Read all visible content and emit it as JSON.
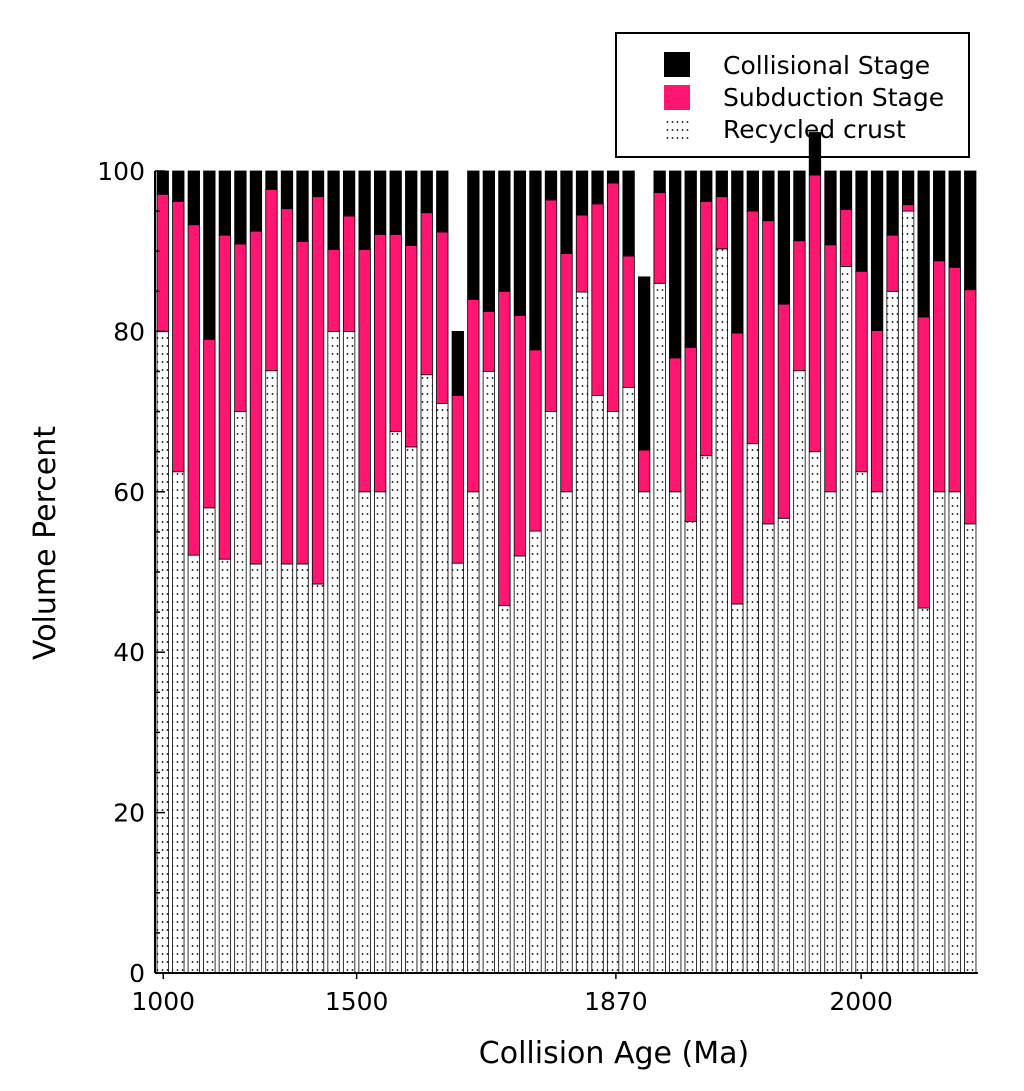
{
  "chart_data": {
    "type": "bar",
    "stacked": true,
    "xlabel": "Collision Age (Ma)",
    "ylabel": "Volume Percent",
    "ylim": [
      0,
      100
    ],
    "yticks": [
      0,
      20,
      40,
      60,
      80,
      100
    ],
    "xtick_labels": [
      "1000",
      "1500",
      "1870",
      "2000"
    ],
    "legend_position": "top-right",
    "colors": {
      "collisional": "#000000",
      "subduction": "#ff1670",
      "recycled": "#ffffff"
    },
    "series": [
      {
        "name": "Collisional Stage",
        "key": "collisional",
        "values": [
          2.9,
          3.8,
          6.7,
          21,
          8,
          9.1,
          7.5,
          2.3,
          4.7,
          8.8,
          3.2,
          9.8,
          5.6,
          9.8,
          7.9,
          7.9,
          9.3,
          5.2,
          7.6,
          8,
          16,
          17.5,
          15,
          18,
          22.3,
          3.6,
          10.3,
          5.5,
          4.1,
          1.5,
          10.6,
          21.6,
          2.7,
          23.3,
          22,
          3.8,
          3.2,
          20.2,
          5,
          6.2,
          16.6,
          8.7,
          5.3,
          9.2,
          4.8,
          12.5,
          19.9,
          8,
          4.2,
          18.2,
          11.2,
          12,
          14.8
        ]
      },
      {
        "name": "Subduction Stage",
        "key": "subduction",
        "values": [
          17.1,
          33.7,
          41.2,
          21,
          40.4,
          20.9,
          41.5,
          22.6,
          44.3,
          40.2,
          48.3,
          10.2,
          14.4,
          30.2,
          32.1,
          24.6,
          25.1,
          20.2,
          21.4,
          20.9,
          24,
          7.5,
          39.2,
          30,
          22.6,
          26.4,
          29.7,
          9.6,
          23.9,
          28.5,
          16.4,
          5.2,
          11.3,
          16.7,
          21.7,
          31.7,
          6.5,
          33.8,
          29,
          37.8,
          26.7,
          16.2,
          34.5,
          30.8,
          7.1,
          25,
          20.1,
          7,
          0.8,
          36.3,
          28.8,
          28,
          29.2
        ]
      },
      {
        "name": "Recycled crust",
        "key": "recycled",
        "values": [
          80,
          62.5,
          52.1,
          58,
          51.6,
          70,
          51,
          75.1,
          51,
          51,
          48.5,
          80,
          80,
          60,
          60,
          67.5,
          65.6,
          74.6,
          71,
          51.1,
          60,
          75,
          45.8,
          52,
          55.1,
          70,
          60,
          84.9,
          72,
          70,
          73,
          60,
          86,
          60,
          56.3,
          64.5,
          90.3,
          46,
          66,
          56,
          56.7,
          75.1,
          65,
          60,
          88.1,
          62.5,
          60,
          85,
          95,
          45.5,
          60,
          60,
          56
        ]
      }
    ]
  },
  "legend": {
    "items": [
      {
        "label": "Collisional Stage",
        "swatch": "#000000",
        "pattern": "solid"
      },
      {
        "label": "Subduction Stage",
        "swatch": "#ff1670",
        "pattern": "solid"
      },
      {
        "label": "Recycled crust",
        "swatch": "#ffffff",
        "pattern": "dots"
      }
    ]
  }
}
